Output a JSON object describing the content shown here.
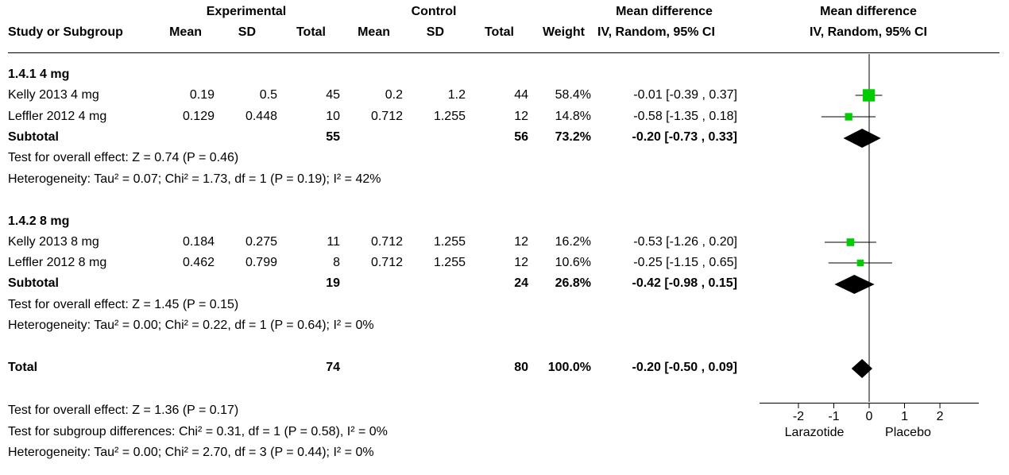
{
  "header": {
    "group_experimental": "Experimental",
    "group_control": "Control",
    "group_md": "Mean difference",
    "plot_title": "Mean difference",
    "study_col": "Study or Subgroup",
    "exp_mean": "Mean",
    "exp_sd": "SD",
    "exp_total": "Total",
    "ctl_mean": "Mean",
    "ctl_sd": "SD",
    "ctl_total": "Total",
    "weight": "Weight",
    "md_method": "IV, Random, 95% CI",
    "plot_method": "IV, Random, 95% CI"
  },
  "groups": [
    {
      "label": "1.4.1 4 mg",
      "studies": [
        {
          "name": "Kelly 2013 4 mg",
          "exp_mean": "0.19",
          "exp_sd": "0.5",
          "exp_total": "45",
          "ctl_mean": "0.2",
          "ctl_sd": "1.2",
          "ctl_total": "44",
          "weight": "58.4%",
          "ci_text": "-0.01 [-0.39 , 0.37]"
        },
        {
          "name": "Leffler 2012 4 mg",
          "exp_mean": "0.129",
          "exp_sd": "0.448",
          "exp_total": "10",
          "ctl_mean": "0.712",
          "ctl_sd": "1.255",
          "ctl_total": "12",
          "weight": "14.8%",
          "ci_text": "-0.58 [-1.35 , 0.18]"
        }
      ],
      "subtotal": {
        "label": "Subtotal",
        "exp_total": "55",
        "ctl_total": "56",
        "weight": "73.2%",
        "ci_text": "-0.20 [-0.73 , 0.33]"
      },
      "overall_effect": "Test for overall effect: Z = 0.74 (P = 0.46)",
      "heterogeneity": "Heterogeneity: Tau² = 0.07; Chi² = 1.73, df = 1 (P = 0.19); I² = 42%"
    },
    {
      "label": "1.4.2 8 mg",
      "studies": [
        {
          "name": "Kelly 2013 8 mg",
          "exp_mean": "0.184",
          "exp_sd": "0.275",
          "exp_total": "11",
          "ctl_mean": "0.712",
          "ctl_sd": "1.255",
          "ctl_total": "12",
          "weight": "16.2%",
          "ci_text": "-0.53 [-1.26 , 0.20]"
        },
        {
          "name": "Leffler 2012 8 mg",
          "exp_mean": "0.462",
          "exp_sd": "0.799",
          "exp_total": "8",
          "ctl_mean": "0.712",
          "ctl_sd": "1.255",
          "ctl_total": "12",
          "weight": "10.6%",
          "ci_text": "-0.25 [-1.15 , 0.65]"
        }
      ],
      "subtotal": {
        "label": "Subtotal",
        "exp_total": "19",
        "ctl_total": "24",
        "weight": "26.8%",
        "ci_text": "-0.42 [-0.98 , 0.15]"
      },
      "overall_effect": "Test for overall effect: Z = 1.45 (P = 0.15)",
      "heterogeneity": "Heterogeneity: Tau² = 0.00; Chi² = 0.22, df = 1 (P = 0.64); I² = 0%"
    }
  ],
  "total": {
    "label": "Total",
    "exp_total": "74",
    "ctl_total": "80",
    "weight": "100.0%",
    "ci_text": "-0.20 [-0.50 , 0.09]"
  },
  "footer": {
    "overall_effect": "Test for overall effect: Z = 1.36 (P = 0.17)",
    "subgroup_diff": "Test for subgroup differences: Chi² = 0.31, df = 1 (P = 0.58), I² = 0%",
    "heterogeneity": "Heterogeneity: Tau² = 0.00; Chi² = 2.70, df = 3 (P = 0.44); I² = 0%"
  },
  "chart_data": {
    "type": "scatter",
    "xlim": [
      -3.1,
      3.1
    ],
    "xticks": [
      -2,
      -1,
      0,
      1,
      2
    ],
    "xtick_labels": [
      "-2",
      "-1",
      "0",
      "1",
      "2"
    ],
    "left_label": "Larazotide",
    "right_label": "Placebo",
    "marker_color": "#00cc00",
    "studies": [
      {
        "name": "Kelly 2013 4 mg",
        "mean": -0.01,
        "lower": -0.39,
        "upper": 0.37,
        "weight": 58.4
      },
      {
        "name": "Leffler 2012 4 mg",
        "mean": -0.58,
        "lower": -1.35,
        "upper": 0.18,
        "weight": 14.8
      },
      {
        "name": "Kelly 2013 8 mg",
        "mean": -0.53,
        "lower": -1.26,
        "upper": 0.2,
        "weight": 16.2
      },
      {
        "name": "Leffler 2012 8 mg",
        "mean": -0.25,
        "lower": -1.15,
        "upper": 0.65,
        "weight": 10.6
      }
    ],
    "diamonds": [
      {
        "name": "Subtotal 1.4.1 4 mg",
        "mean": -0.2,
        "lower": -0.73,
        "upper": 0.33
      },
      {
        "name": "Subtotal 1.4.2 8 mg",
        "mean": -0.42,
        "lower": -0.98,
        "upper": 0.15
      },
      {
        "name": "Total",
        "mean": -0.2,
        "lower": -0.5,
        "upper": 0.09
      }
    ]
  }
}
